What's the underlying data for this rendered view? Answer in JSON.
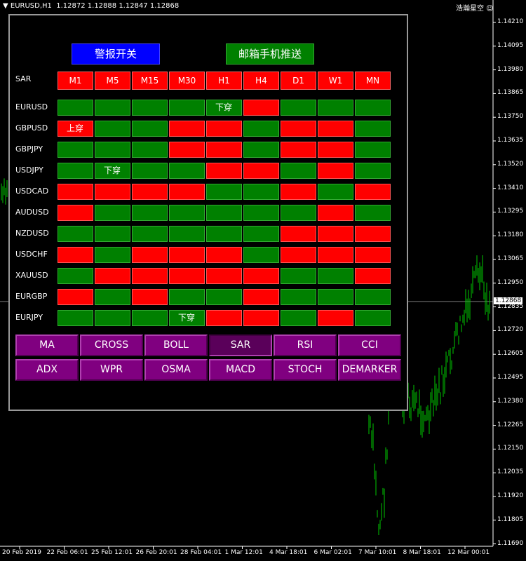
{
  "title_bar": {
    "symbol": "EURUSD,H1",
    "prices": "1.12872 1.12888 1.12847 1.12868",
    "user": "浩瀚星空"
  },
  "price_axis": [
    "1.14210",
    "1.14095",
    "1.13980",
    "1.13865",
    "1.13750",
    "1.13635",
    "1.13520",
    "1.13410",
    "1.13295",
    "1.13180",
    "1.13065",
    "1.12950",
    "1.12835",
    "1.12720",
    "1.12605",
    "1.12495",
    "1.12380",
    "1.12265",
    "1.12150",
    "1.12035",
    "1.11920",
    "1.11805",
    "1.11690"
  ],
  "current_price": "1.12868",
  "time_axis": [
    "20 Feb 2019",
    "22 Feb 06:01",
    "25 Feb 12:01",
    "26 Feb 20:01",
    "28 Feb 04:01",
    "1 Mar 12:01",
    "4 Mar 18:01",
    "6 Mar 02:01",
    "7 Mar 10:01",
    "8 Mar 18:01",
    "12 Mar 00:01"
  ],
  "panel": {
    "buttons": [
      "警报开关",
      "邮箱手机推送"
    ],
    "indicator": "SAR",
    "timeframes": [
      "M1",
      "M5",
      "M15",
      "M30",
      "H1",
      "H4",
      "D1",
      "W1",
      "MN"
    ],
    "rows": [
      {
        "symbol": "EURUSD",
        "cells": [
          "green",
          "green",
          "green",
          "green",
          "green",
          "red",
          "green",
          "green",
          "green"
        ],
        "signals": [
          {
            "col": 4,
            "text": "下穿"
          }
        ]
      },
      {
        "symbol": "GBPUSD",
        "cells": [
          "red",
          "green",
          "green",
          "red",
          "red",
          "green",
          "red",
          "red",
          "green"
        ],
        "signals": [
          {
            "col": 0,
            "text": "上穿"
          }
        ]
      },
      {
        "symbol": "GBPJPY",
        "cells": [
          "green",
          "green",
          "green",
          "red",
          "red",
          "green",
          "red",
          "red",
          "green"
        ]
      },
      {
        "symbol": "USDJPY",
        "cells": [
          "green",
          "green",
          "green",
          "green",
          "red",
          "red",
          "green",
          "red",
          "green"
        ],
        "signals": [
          {
            "col": 1,
            "text": "下穿"
          }
        ]
      },
      {
        "symbol": "USDCAD",
        "cells": [
          "red",
          "red",
          "red",
          "red",
          "green",
          "green",
          "red",
          "green",
          "red"
        ]
      },
      {
        "symbol": "AUDUSD",
        "cells": [
          "red",
          "green",
          "green",
          "green",
          "green",
          "green",
          "green",
          "red",
          "green"
        ]
      },
      {
        "symbol": "NZDUSD",
        "cells": [
          "green",
          "green",
          "green",
          "green",
          "green",
          "green",
          "red",
          "red",
          "red"
        ]
      },
      {
        "symbol": "USDCHF",
        "cells": [
          "red",
          "green",
          "red",
          "red",
          "red",
          "green",
          "red",
          "red",
          "red"
        ]
      },
      {
        "symbol": "XAUUSD",
        "cells": [
          "green",
          "red",
          "red",
          "red",
          "red",
          "red",
          "green",
          "green",
          "red"
        ]
      },
      {
        "symbol": "EURGBP",
        "cells": [
          "red",
          "green",
          "red",
          "green",
          "green",
          "red",
          "green",
          "green",
          "green"
        ]
      },
      {
        "symbol": "EURJPY",
        "cells": [
          "green",
          "green",
          "green",
          "green",
          "red",
          "red",
          "green",
          "red",
          "green"
        ],
        "signals": [
          {
            "col": 3,
            "text": "下穿"
          }
        ]
      }
    ],
    "indicator_buttons": [
      "MA",
      "CROSS",
      "BOLL",
      "SAR",
      "RSI",
      "CCI",
      "ADX",
      "WPR",
      "OSMA",
      "MACD",
      "STOCH",
      "DEMARKER"
    ],
    "selected": 3
  }
}
